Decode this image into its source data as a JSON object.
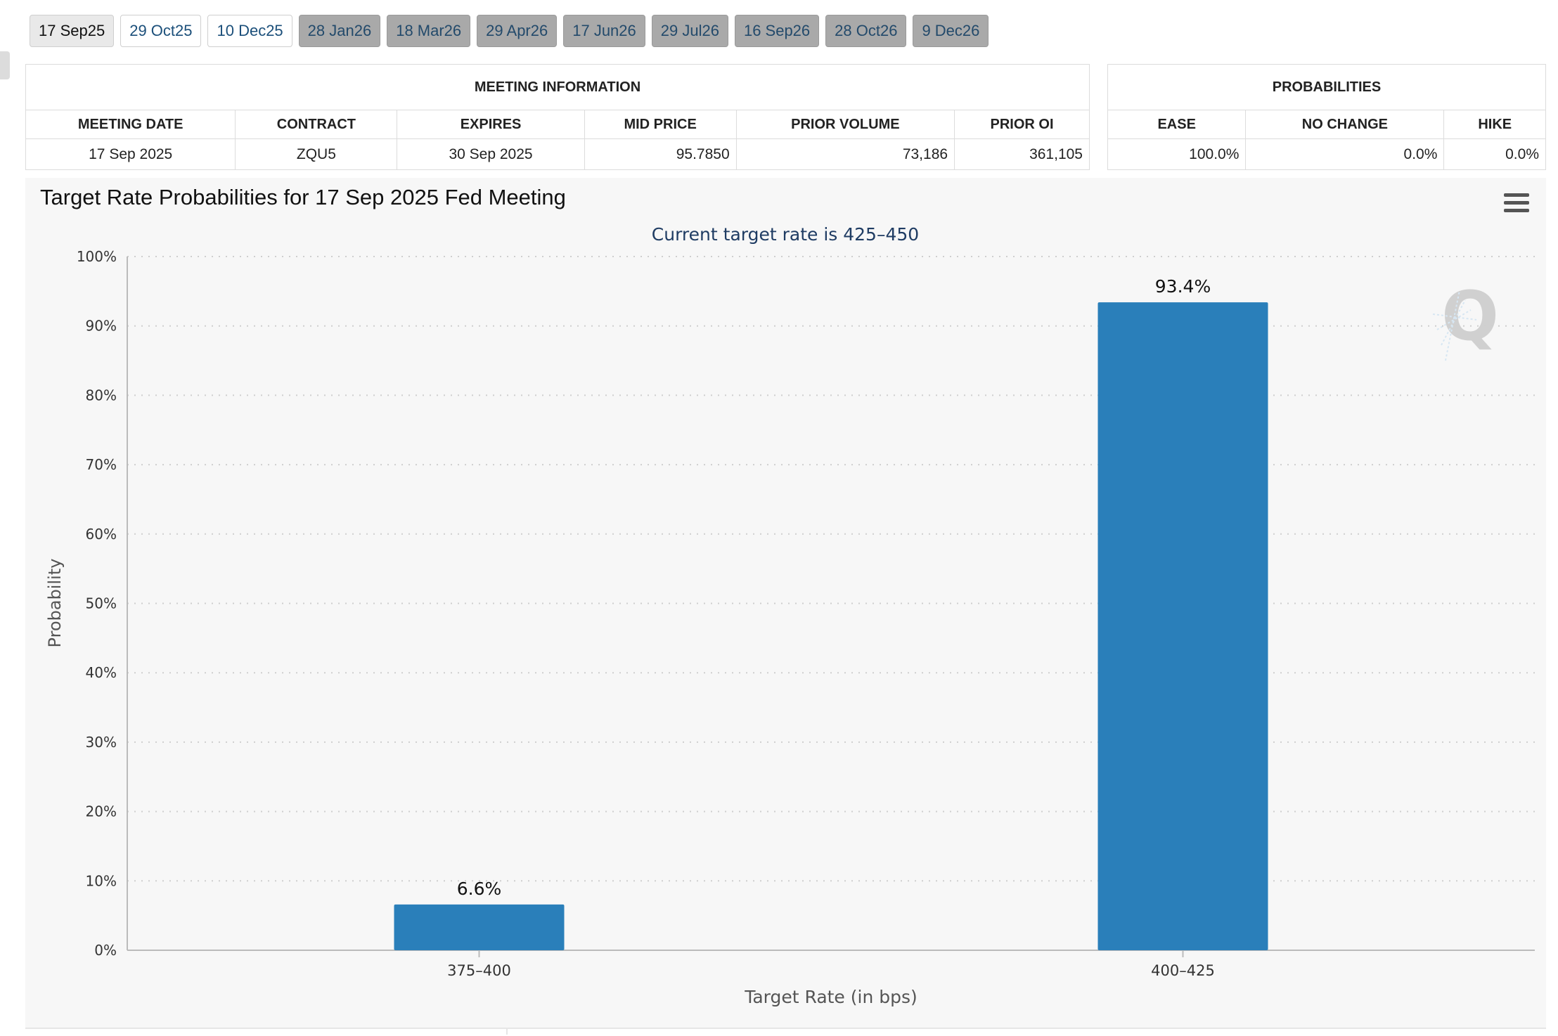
{
  "tabs": [
    {
      "label": "17 Sep25",
      "state": "selected"
    },
    {
      "label": "29 Oct25",
      "state": "near"
    },
    {
      "label": "10 Dec25",
      "state": "near"
    },
    {
      "label": "28 Jan26",
      "state": "far"
    },
    {
      "label": "18 Mar26",
      "state": "far"
    },
    {
      "label": "29 Apr26",
      "state": "far"
    },
    {
      "label": "17 Jun26",
      "state": "far"
    },
    {
      "label": "29 Jul26",
      "state": "far"
    },
    {
      "label": "16 Sep26",
      "state": "far"
    },
    {
      "label": "28 Oct26",
      "state": "far"
    },
    {
      "label": "9 Dec26",
      "state": "far"
    }
  ],
  "meeting_info": {
    "heading": "MEETING INFORMATION",
    "columns": [
      "MEETING DATE",
      "CONTRACT",
      "EXPIRES",
      "MID PRICE",
      "PRIOR VOLUME",
      "PRIOR OI"
    ],
    "row": [
      "17 Sep 2025",
      "ZQU5",
      "30 Sep 2025",
      "95.7850",
      "73,186",
      "361,105"
    ]
  },
  "probabilities": {
    "heading": "PROBABILITIES",
    "columns": [
      "EASE",
      "NO CHANGE",
      "HIKE"
    ],
    "row": [
      "100.0%",
      "0.0%",
      "0.0%"
    ]
  },
  "chart_data": {
    "type": "bar",
    "title": "Target Rate Probabilities for 17 Sep 2025 Fed Meeting",
    "subtitle": "Current target rate is 425–450",
    "xlabel": "Target Rate (in bps)",
    "ylabel": "Probability",
    "categories": [
      "375–400",
      "400–425"
    ],
    "values": [
      6.6,
      93.4
    ],
    "data_labels": [
      "6.6%",
      "93.4%"
    ],
    "ylim": [
      0,
      100
    ],
    "yticks": [
      0,
      10,
      20,
      30,
      40,
      50,
      60,
      70,
      80,
      90,
      100
    ],
    "ytick_labels": [
      "0%",
      "10%",
      "20%",
      "30%",
      "40%",
      "50%",
      "60%",
      "70%",
      "80%",
      "90%",
      "100%"
    ],
    "grid": "dotted horizontal",
    "bar_color": "#2a7fba",
    "subtitle_color": "#1f3c63"
  },
  "icons": {
    "menu": "hamburger-menu-icon",
    "watermark": "q-watermark-icon"
  }
}
